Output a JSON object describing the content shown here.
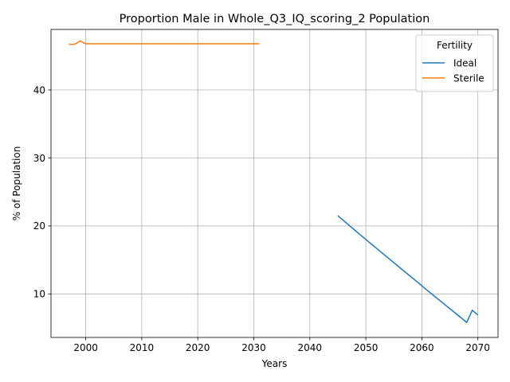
{
  "chart_data": {
    "type": "line",
    "title": "Proportion Male in Whole_Q3_IQ_scoring_2 Population",
    "xlabel": "Years",
    "ylabel": "% of Population",
    "xlim": [
      1993.8,
      2073.6
    ],
    "ylim": [
      3.6,
      48.9
    ],
    "xticks": [
      2000,
      2010,
      2020,
      2030,
      2040,
      2050,
      2060,
      2070
    ],
    "yticks": [
      10,
      20,
      30,
      40
    ],
    "grid": true,
    "legend": {
      "title": "Fertility",
      "placement": "top-right"
    },
    "series": [
      {
        "name": "Ideal",
        "color": "#1f77b4",
        "x": [
          2045,
          2050,
          2055,
          2060,
          2061,
          2067,
          2068,
          2069,
          2070
        ],
        "y": [
          21.5,
          18.0,
          14.6,
          11.2,
          10.5,
          6.5,
          5.8,
          7.6,
          6.9
        ]
      },
      {
        "name": "Sterile",
        "color": "#ff7f0e",
        "x": [
          1997,
          1998,
          1999,
          2000,
          2005,
          2010,
          2015,
          2020,
          2025,
          2031
        ],
        "y": [
          46.7,
          46.7,
          47.2,
          46.8,
          46.8,
          46.8,
          46.8,
          46.8,
          46.8,
          46.8
        ]
      }
    ]
  }
}
